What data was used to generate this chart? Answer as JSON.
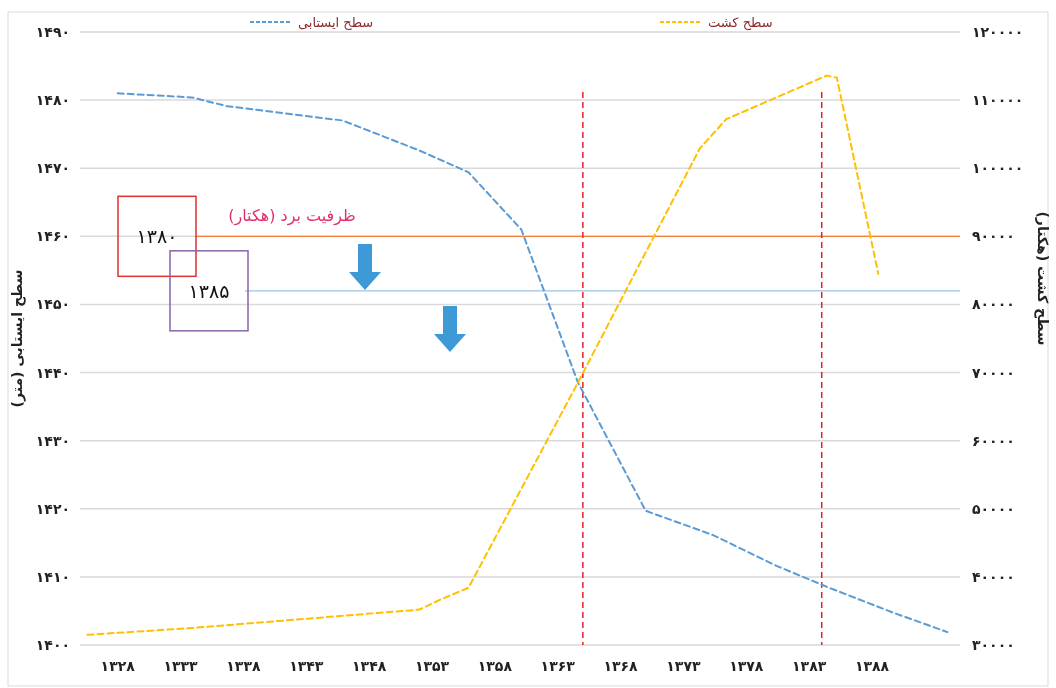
{
  "chart_data": {
    "type": "line",
    "ylabel": "سطح ایستابی (متر)",
    "y2label": "سطح کشت (هکتار)",
    "series": [
      {
        "name": "سطح ایستابی",
        "color": "#5b9bd5",
        "x": [
          1328,
          1333.9,
          1336.7,
          1345.9,
          1352,
          1355.9,
          1360.1,
          1364.6,
          1370,
          1375.4,
          1380.3,
          1384.6,
          1389.6,
          1394
        ],
        "values": [
          1481,
          1480.4,
          1479.1,
          1477,
          1472.6,
          1469.4,
          1461,
          1438.6,
          1419.7,
          1416.1,
          1411.7,
          1408.4,
          1404.8,
          1401.9
        ]
      },
      {
        "name": "سطح کشت",
        "color": "#ffc000",
        "axis": "y2",
        "x": [
          1325.6,
          1333.9,
          1352,
          1353.7,
          1355.9,
          1364.6,
          1374.3,
          1376.4,
          1384.4,
          1385.2,
          1388.5
        ],
        "values": [
          31500,
          32500,
          35200,
          36700,
          38400,
          68500,
          102900,
          107200,
          113600,
          113300,
          84500
        ]
      }
    ],
    "xlim": [
      1325,
      1395
    ],
    "xticks": [
      {
        "value": 1328,
        "label": "۱۳۲۸"
      },
      {
        "value": 1333,
        "label": "۱۳۳۳"
      },
      {
        "value": 1338,
        "label": "۱۳۳۸"
      },
      {
        "value": 1343,
        "label": "۱۳۴۳"
      },
      {
        "value": 1348,
        "label": "۱۳۴۸"
      },
      {
        "value": 1353,
        "label": "۱۳۵۳"
      },
      {
        "value": 1358,
        "label": "۱۳۵۸"
      },
      {
        "value": 1363,
        "label": "۱۳۶۳"
      },
      {
        "value": 1368,
        "label": "۱۳۶۸"
      },
      {
        "value": 1373,
        "label": "۱۳۷۳"
      },
      {
        "value": 1378,
        "label": "۱۳۷۸"
      },
      {
        "value": 1383,
        "label": "۱۳۸۳"
      },
      {
        "value": 1388,
        "label": "۱۳۸۸"
      }
    ],
    "ylim": [
      1400,
      1490
    ],
    "yticks": [
      {
        "value": 1400,
        "label": "۱۴۰۰"
      },
      {
        "value": 1410,
        "label": "۱۴۱۰"
      },
      {
        "value": 1420,
        "label": "۱۴۲۰"
      },
      {
        "value": 1430,
        "label": "۱۴۳۰"
      },
      {
        "value": 1440,
        "label": "۱۴۴۰"
      },
      {
        "value": 1450,
        "label": "۱۴۵۰"
      },
      {
        "value": 1460,
        "label": "۱۴۶۰"
      },
      {
        "value": 1470,
        "label": "۱۴۷۰"
      },
      {
        "value": 1480,
        "label": "۱۴۸۰"
      },
      {
        "value": 1490,
        "label": "۱۴۹۰"
      }
    ],
    "y2lim": [
      30000,
      120000
    ],
    "y2ticks": [
      {
        "value": 30000,
        "label": "۳۰۰۰۰"
      },
      {
        "value": 40000,
        "label": "۴۰۰۰۰"
      },
      {
        "value": 50000,
        "label": "۵۰۰۰۰"
      },
      {
        "value": 60000,
        "label": "۶۰۰۰۰"
      },
      {
        "value": 70000,
        "label": "۷۰۰۰۰"
      },
      {
        "value": 80000,
        "label": "۸۰۰۰۰"
      },
      {
        "value": 90000,
        "label": "۹۰۰۰۰"
      },
      {
        "value": 100000,
        "label": "۱۰۰۰۰۰"
      },
      {
        "value": 110000,
        "label": "۱۱۰۰۰۰"
      },
      {
        "value": 120000,
        "label": "۱۲۰۰۰۰"
      }
    ],
    "ref_lines": [
      {
        "axis": "y2",
        "value": 90000,
        "label": "۱۳۸۰",
        "color": "#f4813a",
        "line_style": "solid"
      },
      {
        "axis": "y2",
        "value": 82000,
        "label": "۱۳۸۵",
        "color": "#9dc3e6",
        "line_style": "solid"
      },
      {
        "axis": "x",
        "value": 1365,
        "color": "#e8202a",
        "line_style": "dashed"
      },
      {
        "axis": "x",
        "value": 1384,
        "color": "#e8202a",
        "line_style": "dashed"
      }
    ],
    "annotations": [
      "ظرفیت برد (هکتار)"
    ],
    "grid": "y",
    "legend": "top",
    "line_style": "dashed",
    "marker": "none"
  }
}
